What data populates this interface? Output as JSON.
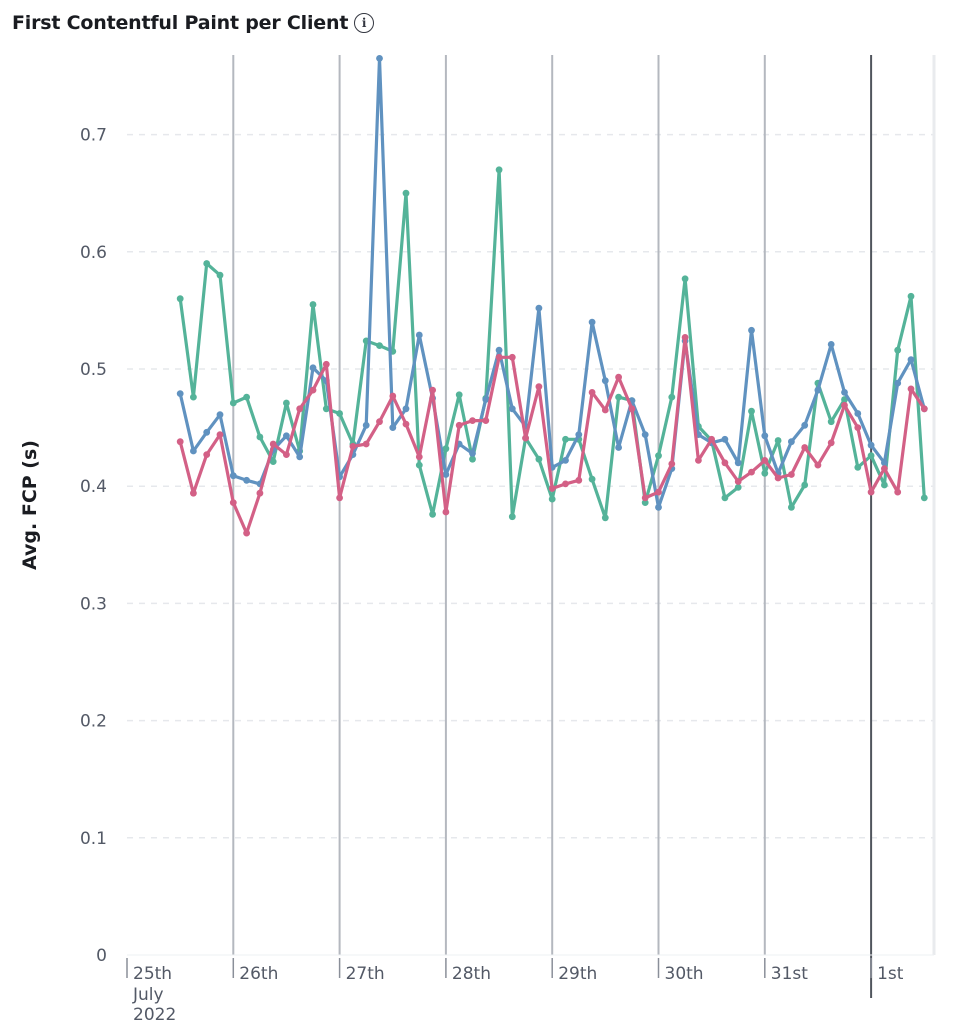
{
  "header": {
    "title": "First Contentful Paint per Client",
    "info_icon": "info-icon"
  },
  "chart_data": {
    "type": "line",
    "title": "First Contentful Paint per Client",
    "xlabel": "",
    "ylabel": "Avg. FCP (s)",
    "ylim": [
      0,
      0.75
    ],
    "y_ticks": [
      0,
      0.1,
      0.2,
      0.3,
      0.4,
      0.5,
      0.6,
      0.7
    ],
    "y_tick_labels": [
      "0",
      "0.1",
      "0.2",
      "0.3",
      "0.4",
      "0.5",
      "0.6",
      "0.7"
    ],
    "x_start": "2022-07-25",
    "x_range_days": [
      0,
      7.6
    ],
    "x_step_days": 0.125,
    "x_first_point_day": 0.5,
    "x_ticks": [
      {
        "day": 0,
        "label": "25th",
        "sub": [
          "July",
          "2022"
        ]
      },
      {
        "day": 1,
        "label": "26th",
        "sub": []
      },
      {
        "day": 2,
        "label": "27th",
        "sub": []
      },
      {
        "day": 3,
        "label": "28th",
        "sub": []
      },
      {
        "day": 4,
        "label": "29th",
        "sub": []
      },
      {
        "day": 5,
        "label": "30th",
        "sub": []
      },
      {
        "day": 6,
        "label": "31st",
        "sub": []
      },
      {
        "day": 7,
        "label": "1st",
        "sub": []
      }
    ],
    "grid": true,
    "legend": "none",
    "series": [
      {
        "color": "#54b399",
        "values": [
          0.56,
          0.476,
          0.59,
          0.58,
          0.471,
          0.476,
          0.442,
          0.421,
          0.471,
          0.43,
          0.555,
          0.466,
          0.462,
          0.436,
          0.524,
          0.52,
          0.515,
          0.65,
          0.418,
          0.376,
          0.432,
          0.478,
          0.423,
          0.475,
          0.67,
          0.374,
          0.441,
          0.423,
          0.389,
          0.44,
          0.44,
          0.406,
          0.373,
          0.476,
          0.473,
          0.386,
          0.426,
          0.476,
          0.577,
          0.451,
          0.439,
          0.39,
          0.399,
          0.464,
          0.411,
          0.439,
          0.382,
          0.401,
          0.488,
          0.455,
          0.474,
          0.416,
          0.426,
          0.401,
          0.516,
          0.562,
          0.39
        ]
      },
      {
        "color": "#6092c0",
        "values": [
          0.479,
          0.43,
          0.446,
          0.461,
          0.409,
          0.405,
          0.402,
          0.431,
          0.443,
          0.425,
          0.501,
          0.49,
          0.408,
          0.427,
          0.452,
          0.765,
          0.45,
          0.466,
          0.529,
          0.475,
          0.41,
          0.436,
          0.428,
          0.474,
          0.516,
          0.466,
          0.451,
          0.552,
          0.416,
          0.422,
          0.444,
          0.54,
          0.49,
          0.433,
          0.473,
          0.444,
          0.382,
          0.415,
          0.524,
          0.444,
          0.437,
          0.44,
          0.42,
          0.533,
          0.443,
          0.411,
          0.438,
          0.452,
          0.482,
          0.521,
          0.48,
          0.462,
          0.435,
          0.42,
          0.488,
          0.508,
          0.466
        ]
      },
      {
        "color": "#d36086",
        "values": [
          0.438,
          0.394,
          0.427,
          0.444,
          0.386,
          0.36,
          0.394,
          0.436,
          0.427,
          0.466,
          0.482,
          0.504,
          0.39,
          0.434,
          0.436,
          0.455,
          0.477,
          0.453,
          0.425,
          0.482,
          0.378,
          0.452,
          0.456,
          0.456,
          0.51,
          0.51,
          0.441,
          0.485,
          0.398,
          0.402,
          0.405,
          0.48,
          0.465,
          0.493,
          0.466,
          0.39,
          0.395,
          0.419,
          0.527,
          0.422,
          0.44,
          0.42,
          0.404,
          0.412,
          0.422,
          0.407,
          0.41,
          0.433,
          0.418,
          0.437,
          0.469,
          0.45,
          0.395,
          0.415,
          0.395,
          0.483,
          0.466
        ]
      }
    ]
  }
}
